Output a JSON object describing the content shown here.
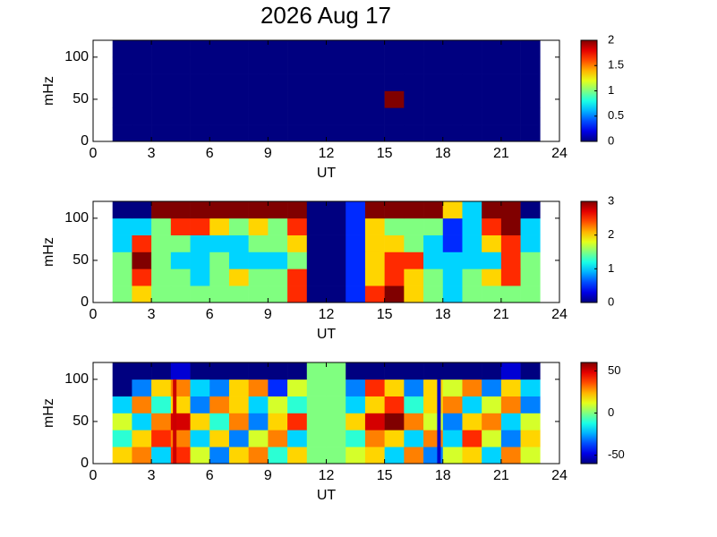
{
  "title": "2026 Aug 17",
  "chart_data": [
    {
      "type": "heatmap",
      "xlabel": "UT",
      "ylabel": "mHz",
      "xlim": [
        0,
        24
      ],
      "xticks": [
        0,
        3,
        6,
        9,
        12,
        15,
        18,
        21,
        24
      ],
      "ylim": [
        0,
        120
      ],
      "yticks": [
        0,
        50,
        100
      ],
      "xbins": [
        0,
        1,
        2,
        3,
        4,
        5,
        6,
        7,
        8,
        9,
        10,
        11,
        12,
        13,
        14,
        15,
        16,
        17,
        18,
        19,
        20,
        21,
        22,
        23,
        24
      ],
      "ybins": [
        0,
        20,
        40,
        60,
        80,
        100,
        120
      ],
      "clim": [
        0,
        2
      ],
      "cticks": [
        0,
        0.5,
        1,
        1.5,
        2
      ],
      "z": [
        [
          null,
          0,
          0,
          0,
          0,
          0,
          0,
          0,
          0,
          0,
          0,
          0,
          0,
          0,
          0,
          0,
          0,
          0,
          0,
          0,
          0,
          0,
          0,
          null
        ],
        [
          null,
          0,
          0,
          0,
          0,
          0,
          0,
          0,
          0,
          0,
          0,
          0,
          0,
          0,
          0,
          0,
          0,
          0,
          0,
          0,
          0,
          0,
          0,
          null
        ],
        [
          null,
          0,
          0,
          0,
          0,
          0,
          0,
          0,
          0,
          0,
          0,
          0,
          0,
          0,
          0,
          2,
          0,
          0,
          0,
          0,
          0,
          0,
          0,
          null
        ],
        [
          null,
          0,
          0,
          0,
          0,
          0,
          0,
          0,
          0,
          0,
          0,
          0,
          0,
          0,
          0,
          0,
          0,
          0,
          0,
          0,
          0,
          0,
          0,
          null
        ],
        [
          null,
          0,
          0,
          0,
          0,
          0,
          0,
          0,
          0,
          0,
          0,
          0,
          0,
          0,
          0,
          0,
          0,
          0,
          0,
          0,
          0,
          0,
          0,
          null
        ],
        [
          null,
          0,
          0,
          0,
          0,
          0,
          0,
          0,
          0,
          0,
          0,
          0,
          0,
          0,
          0,
          0,
          0,
          0,
          0,
          0,
          0,
          0,
          0,
          null
        ]
      ]
    },
    {
      "type": "heatmap",
      "xlabel": "UT",
      "ylabel": "mHz",
      "xlim": [
        0,
        24
      ],
      "xticks": [
        0,
        3,
        6,
        9,
        12,
        15,
        18,
        21,
        24
      ],
      "ylim": [
        0,
        120
      ],
      "yticks": [
        0,
        50,
        100
      ],
      "xbins": [
        0,
        1,
        2,
        3,
        4,
        5,
        6,
        7,
        8,
        9,
        10,
        11,
        12,
        13,
        14,
        15,
        16,
        17,
        18,
        19,
        20,
        21,
        22,
        23,
        24
      ],
      "ybins": [
        0,
        20,
        40,
        60,
        80,
        100,
        120
      ],
      "clim": [
        0,
        3
      ],
      "cticks": [
        0,
        1,
        2,
        3
      ],
      "z": [
        [
          null,
          1.5,
          2,
          1.5,
          1.5,
          1.5,
          1.5,
          1.5,
          1.5,
          1.5,
          2.5,
          0,
          0,
          0.5,
          2.5,
          3,
          2,
          1.5,
          1,
          1.5,
          1.5,
          1.5,
          1.5,
          null
        ],
        [
          null,
          1.5,
          2.5,
          1.5,
          1.5,
          1,
          1.5,
          2,
          1.5,
          1.5,
          2.5,
          0,
          0,
          0.5,
          2,
          2.5,
          2,
          1.5,
          1,
          1.5,
          2,
          2.5,
          1.5,
          null
        ],
        [
          null,
          1.5,
          3,
          1.5,
          1,
          1,
          1.5,
          1,
          1,
          1,
          1.5,
          0,
          0,
          0.5,
          2,
          2.5,
          2.5,
          1,
          1,
          1,
          1,
          2.5,
          1.5,
          null
        ],
        [
          null,
          1,
          2.5,
          1.5,
          1.5,
          1,
          1,
          1,
          1.5,
          1.5,
          2,
          0,
          0,
          0.5,
          2,
          2,
          1.5,
          1,
          0.5,
          1,
          2,
          2.5,
          1,
          null
        ],
        [
          null,
          1,
          1,
          1.5,
          2.5,
          2.5,
          2,
          1.5,
          2,
          1.5,
          2.5,
          0,
          0,
          0.5,
          2,
          1.5,
          1.5,
          1.5,
          0.5,
          1,
          2.5,
          3,
          1,
          null
        ],
        [
          null,
          0,
          0,
          3,
          3,
          3,
          3,
          3,
          3,
          3,
          3,
          0,
          0,
          0.5,
          3,
          3,
          3,
          3,
          2,
          1,
          3,
          3,
          0,
          null
        ]
      ]
    },
    {
      "type": "heatmap",
      "xlabel": "UT",
      "ylabel": "mHz",
      "xlim": [
        0,
        24
      ],
      "xticks": [
        0,
        3,
        6,
        9,
        12,
        15,
        18,
        21,
        24
      ],
      "ylim": [
        0,
        120
      ],
      "yticks": [
        0,
        50,
        100
      ],
      "xbins": [
        0,
        1,
        2,
        3,
        4,
        5,
        6,
        7,
        8,
        9,
        10,
        11,
        12,
        13,
        14,
        15,
        16,
        17,
        18,
        19,
        20,
        21,
        22,
        23,
        24
      ],
      "ybins": [
        0,
        20,
        40,
        60,
        80,
        100,
        120
      ],
      "clim": [
        -60,
        60
      ],
      "cticks": [
        -50,
        0,
        50
      ],
      "z": [
        [
          null,
          20,
          30,
          -20,
          40,
          10,
          -30,
          20,
          30,
          -10,
          20,
          0,
          0,
          10,
          20,
          -20,
          30,
          -30,
          10,
          20,
          -20,
          30,
          10,
          null
        ],
        [
          null,
          -10,
          20,
          40,
          30,
          -20,
          20,
          -30,
          10,
          30,
          -20,
          0,
          0,
          -10,
          30,
          20,
          -20,
          30,
          -20,
          40,
          10,
          -30,
          20,
          null
        ],
        [
          null,
          10,
          -20,
          30,
          50,
          20,
          -10,
          30,
          -30,
          20,
          40,
          0,
          0,
          20,
          50,
          60,
          30,
          10,
          -30,
          20,
          30,
          -20,
          10,
          null
        ],
        [
          null,
          -20,
          30,
          -10,
          20,
          -30,
          30,
          20,
          -20,
          10,
          -10,
          0,
          0,
          -20,
          20,
          40,
          -10,
          20,
          30,
          -20,
          10,
          30,
          -30,
          null
        ],
        [
          null,
          -60,
          -30,
          20,
          30,
          -20,
          -30,
          20,
          30,
          -40,
          10,
          0,
          0,
          -30,
          40,
          20,
          -30,
          20,
          10,
          30,
          -30,
          20,
          -20,
          null
        ],
        [
          null,
          -60,
          -60,
          -60,
          -50,
          -60,
          -60,
          -60,
          -60,
          -60,
          -60,
          0,
          0,
          -60,
          -60,
          -60,
          -60,
          -60,
          -60,
          -60,
          -60,
          -50,
          -60,
          null
        ]
      ],
      "lines": [
        {
          "x": 4.2,
          "color": "#cc0000"
        },
        {
          "x": 17.8,
          "color": "#0000cc"
        }
      ]
    }
  ]
}
